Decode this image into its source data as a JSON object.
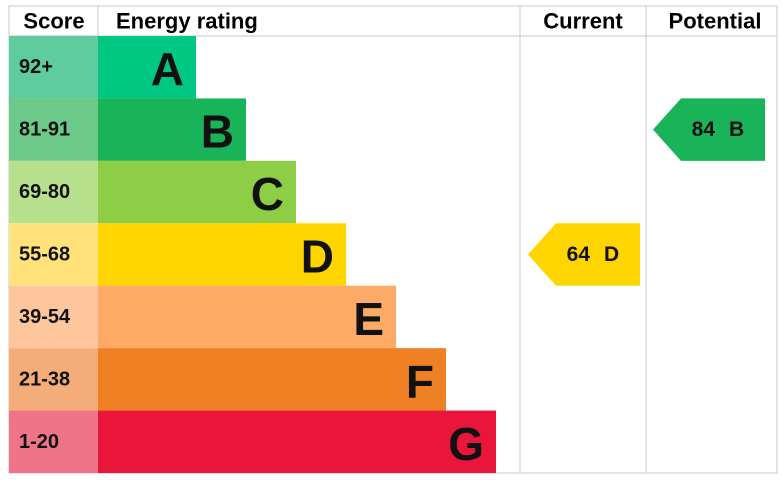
{
  "header": {
    "score": "Score",
    "rating": "Energy rating",
    "current": "Current",
    "potential": "Potential"
  },
  "bands": [
    {
      "range": "92+",
      "letter": "A",
      "color": "#00c781",
      "light": "#5fcca0"
    },
    {
      "range": "81-91",
      "letter": "B",
      "color": "#19b459",
      "light": "#6cc98a"
    },
    {
      "range": "69-80",
      "letter": "C",
      "color": "#8dce46",
      "light": "#b7e08d"
    },
    {
      "range": "55-68",
      "letter": "D",
      "color": "#ffd500",
      "light": "#ffe37a"
    },
    {
      "range": "39-54",
      "letter": "E",
      "color": "#fcaa65",
      "light": "#fdc69c"
    },
    {
      "range": "21-38",
      "letter": "F",
      "color": "#ef8023",
      "light": "#f4ad78"
    },
    {
      "range": "1-20",
      "letter": "G",
      "color": "#e9153b",
      "light": "#f07487"
    }
  ],
  "current": {
    "score": 64,
    "rating": "D"
  },
  "potential": {
    "score": 84,
    "rating": "B"
  }
}
